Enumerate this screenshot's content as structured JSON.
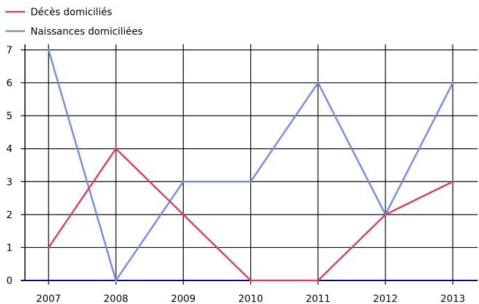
{
  "chart_data": {
    "type": "line",
    "categories": [
      "2007",
      "2008",
      "2009",
      "2010",
      "2011",
      "2012",
      "2013"
    ],
    "series": [
      {
        "name": "Décès domiciliés",
        "color": "#dc3c5f",
        "values": [
          1,
          4,
          2,
          0,
          0,
          2,
          3
        ]
      },
      {
        "name": "Naissances domiciliées",
        "color": "#6e8ce6",
        "values": [
          7,
          0,
          3,
          3,
          6,
          2,
          6
        ]
      }
    ],
    "ylim": [
      0,
      7
    ],
    "yticks": [
      "0",
      "1",
      "2",
      "3",
      "4",
      "5",
      "6",
      "7"
    ],
    "grid": true,
    "legend": "top-left"
  }
}
